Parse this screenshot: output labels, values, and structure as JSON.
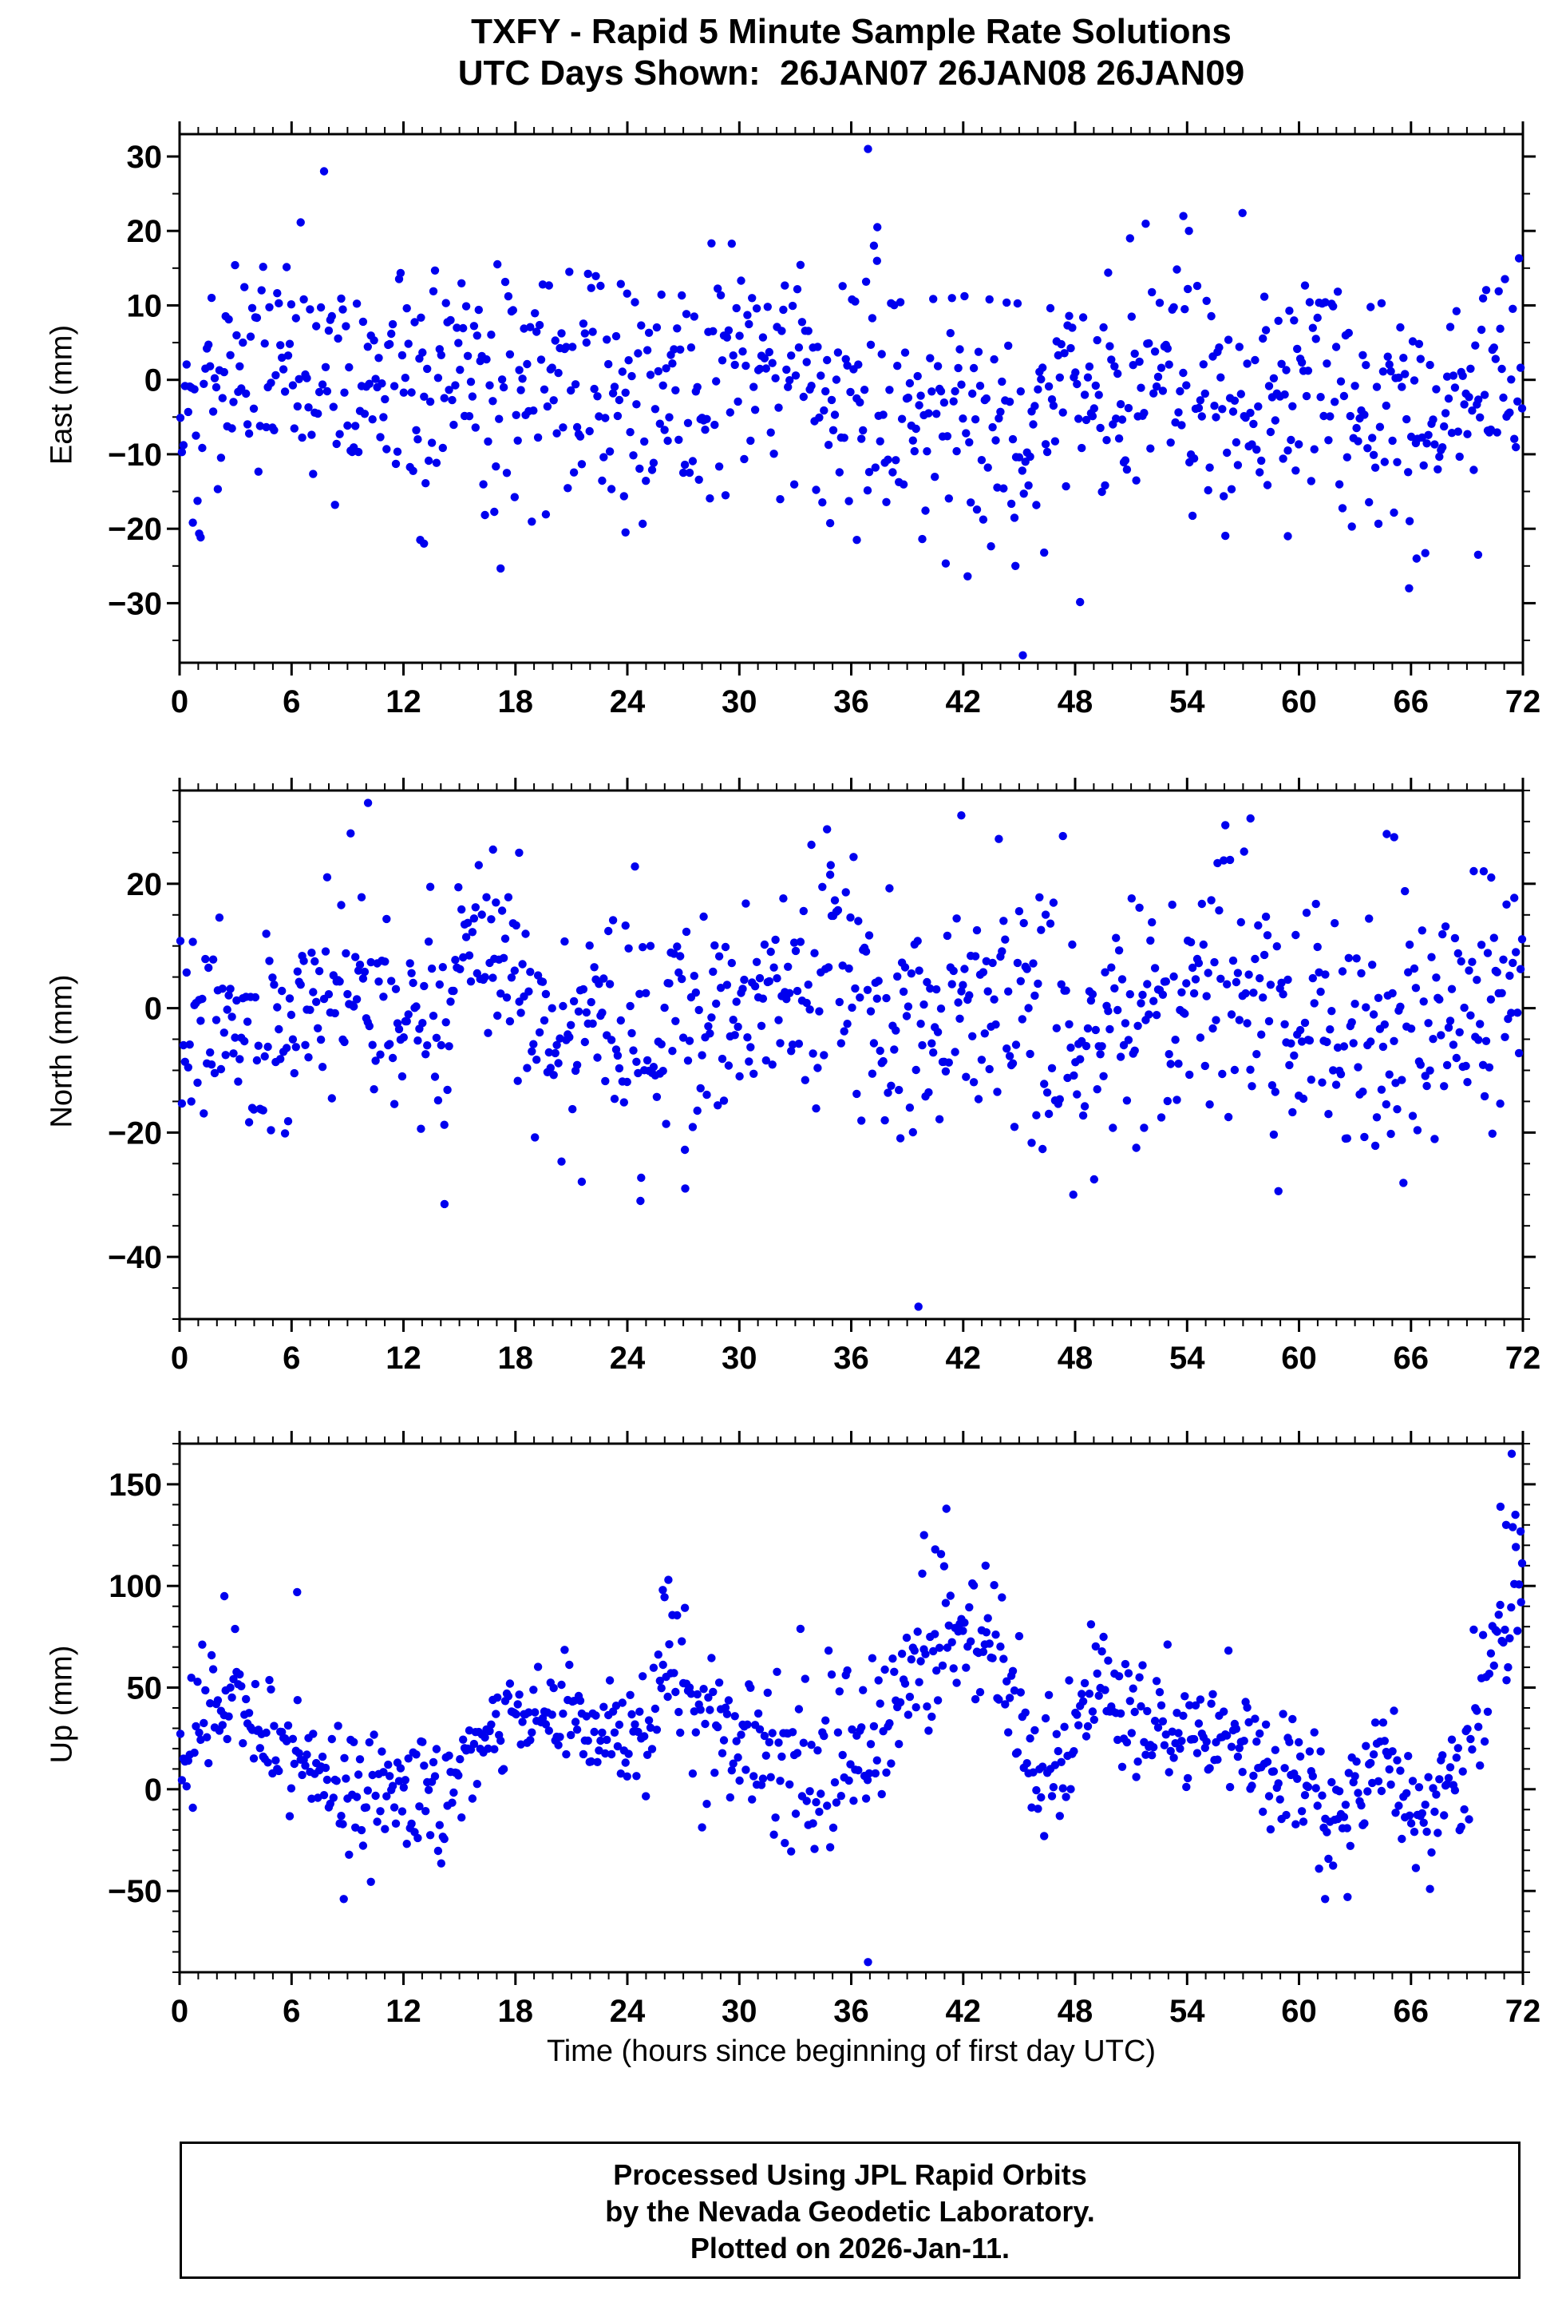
{
  "header": {
    "line1": "TXFY - Rapid 5 Minute Sample Rate Solutions",
    "line2": "UTC Days Shown:  26JAN07 26JAN08 26JAN09"
  },
  "xlabel": "Time (hours since beginning of first day UTC)",
  "point_color": "#0000ee",
  "footer": {
    "lines": [
      "Processed Using JPL Rapid Orbits",
      "by the Nevada Geodetic Laboratory.",
      "Plotted on 2026-Jan-11."
    ]
  },
  "chart_data": [
    {
      "type": "scatter",
      "panel": "east",
      "ylabel": "East (mm)",
      "x_range": [
        0,
        72
      ],
      "x_major": 6,
      "x_minor": 1,
      "x_ticks": [
        0,
        6,
        12,
        18,
        24,
        30,
        36,
        42,
        48,
        54,
        60,
        66,
        72
      ],
      "y_range": [
        -38,
        33
      ],
      "y_ticks": [
        30,
        20,
        10,
        0,
        -10,
        -20,
        -30
      ],
      "y_minor": 5,
      "n_points": 860,
      "seed": 101,
      "trend_keyframes": [
        [
          0,
          -6
        ],
        [
          1,
          -7
        ],
        [
          2,
          -1
        ],
        [
          3,
          2
        ],
        [
          4,
          1
        ],
        [
          6,
          3
        ],
        [
          8,
          2
        ],
        [
          10,
          3
        ],
        [
          12,
          -1
        ],
        [
          14,
          1
        ],
        [
          16,
          -2
        ],
        [
          18,
          -2
        ],
        [
          20,
          1
        ],
        [
          22,
          0
        ],
        [
          24,
          0
        ],
        [
          26,
          1
        ],
        [
          28,
          0
        ],
        [
          30,
          2
        ],
        [
          32,
          2
        ],
        [
          34,
          1
        ],
        [
          36,
          -1
        ],
        [
          38,
          0
        ],
        [
          40,
          -2
        ],
        [
          42,
          -3
        ],
        [
          44,
          -4
        ],
        [
          46,
          -5
        ],
        [
          48,
          -4
        ],
        [
          50,
          -2
        ],
        [
          52,
          1
        ],
        [
          54,
          2
        ],
        [
          56,
          -2
        ],
        [
          58,
          -1
        ],
        [
          60,
          -1
        ],
        [
          62,
          0
        ],
        [
          64,
          -3
        ],
        [
          66,
          -5
        ],
        [
          68,
          -3
        ],
        [
          70,
          0
        ],
        [
          72,
          0
        ]
      ],
      "sigma_keyframes": [
        [
          0,
          5
        ],
        [
          2,
          8
        ],
        [
          24,
          8
        ],
        [
          36,
          9
        ],
        [
          60,
          8
        ],
        [
          72,
          8
        ]
      ],
      "outlier_points": [
        [
          36.3,
          -21.5
        ],
        [
          36.9,
          31
        ],
        [
          37.4,
          20.5
        ],
        [
          45.2,
          -37
        ],
        [
          44.8,
          -25
        ],
        [
          53.8,
          22
        ],
        [
          54.1,
          20
        ],
        [
          65.9,
          -28
        ],
        [
          66.3,
          -24
        ],
        [
          69.6,
          -23.5
        ],
        [
          12.9,
          -21.5
        ],
        [
          13.1,
          -22
        ],
        [
          23.9,
          -20.5
        ],
        [
          59.4,
          -21
        ]
      ]
    },
    {
      "type": "scatter",
      "panel": "north",
      "ylabel": "North (mm)",
      "x_range": [
        0,
        72
      ],
      "x_major": 6,
      "x_minor": 1,
      "x_ticks": [
        0,
        6,
        12,
        18,
        24,
        30,
        36,
        42,
        48,
        54,
        60,
        66,
        72
      ],
      "y_range": [
        -50,
        35
      ],
      "y_ticks": [
        20,
        0,
        -20,
        -40
      ],
      "y_minor": 5,
      "n_points": 860,
      "seed": 202,
      "trend_keyframes": [
        [
          0,
          -3
        ],
        [
          2,
          -4
        ],
        [
          4,
          -5
        ],
        [
          6,
          1
        ],
        [
          8,
          3
        ],
        [
          10,
          1
        ],
        [
          12,
          -1
        ],
        [
          14,
          -4
        ],
        [
          16,
          8
        ],
        [
          17,
          7
        ],
        [
          18,
          2
        ],
        [
          20,
          -2
        ],
        [
          22,
          -3
        ],
        [
          24,
          -4
        ],
        [
          26,
          -2
        ],
        [
          28,
          -4
        ],
        [
          30,
          -1
        ],
        [
          32,
          2
        ],
        [
          33,
          6
        ],
        [
          34,
          4
        ],
        [
          35,
          8
        ],
        [
          36,
          5
        ],
        [
          37,
          2
        ],
        [
          38,
          0
        ],
        [
          40,
          -2
        ],
        [
          42,
          3
        ],
        [
          44,
          1
        ],
        [
          46,
          -2
        ],
        [
          48,
          -3
        ],
        [
          50,
          -2
        ],
        [
          52,
          -1
        ],
        [
          54,
          0
        ],
        [
          56,
          3
        ],
        [
          58,
          1
        ],
        [
          60,
          -2
        ],
        [
          62,
          -4
        ],
        [
          64,
          -3
        ],
        [
          66,
          -4
        ],
        [
          68,
          -2
        ],
        [
          70,
          4
        ],
        [
          72,
          3
        ]
      ],
      "sigma_keyframes": [
        [
          0,
          7
        ],
        [
          6,
          9
        ],
        [
          18,
          8
        ],
        [
          30,
          9
        ],
        [
          36,
          10
        ],
        [
          48,
          9
        ],
        [
          60,
          10
        ],
        [
          72,
          9
        ]
      ],
      "outlier_points": [
        [
          10.1,
          33
        ],
        [
          39.6,
          -48
        ],
        [
          14.2,
          -31.5
        ],
        [
          24.7,
          -31
        ],
        [
          27.1,
          -29
        ],
        [
          41.9,
          31
        ],
        [
          57.4,
          30.5
        ],
        [
          64.7,
          28
        ],
        [
          65.1,
          27.5
        ],
        [
          69.9,
          22
        ],
        [
          70.3,
          21
        ],
        [
          16.8,
          25.5
        ],
        [
          18.2,
          25
        ],
        [
          47.9,
          -30
        ],
        [
          34.9,
          23
        ]
      ]
    },
    {
      "type": "scatter",
      "panel": "up",
      "ylabel": "Up (mm)",
      "x_range": [
        0,
        72
      ],
      "x_major": 6,
      "x_minor": 1,
      "x_ticks": [
        0,
        6,
        12,
        18,
        24,
        30,
        36,
        42,
        48,
        54,
        60,
        66,
        72
      ],
      "y_range": [
        -90,
        170
      ],
      "y_ticks": [
        150,
        100,
        50,
        0,
        -50
      ],
      "y_minor": 10,
      "n_points": 860,
      "seed": 303,
      "trend_keyframes": [
        [
          0,
          25
        ],
        [
          1,
          35
        ],
        [
          2,
          40
        ],
        [
          3,
          45
        ],
        [
          4,
          30
        ],
        [
          5,
          25
        ],
        [
          6,
          20
        ],
        [
          7,
          15
        ],
        [
          8,
          5
        ],
        [
          9,
          0
        ],
        [
          10,
          0
        ],
        [
          11,
          5
        ],
        [
          12,
          0
        ],
        [
          13,
          -5
        ],
        [
          14,
          -5
        ],
        [
          15,
          10
        ],
        [
          16,
          25
        ],
        [
          17,
          30
        ],
        [
          18,
          35
        ],
        [
          19,
          30
        ],
        [
          20,
          35
        ],
        [
          21,
          38
        ],
        [
          22,
          35
        ],
        [
          23,
          32
        ],
        [
          24,
          30
        ],
        [
          25,
          35
        ],
        [
          26,
          55
        ],
        [
          27,
          55
        ],
        [
          28,
          40
        ],
        [
          29,
          30
        ],
        [
          30,
          25
        ],
        [
          31,
          12
        ],
        [
          32,
          15
        ],
        [
          33,
          18
        ],
        [
          34,
          5
        ],
        [
          35,
          10
        ],
        [
          36,
          15
        ],
        [
          37,
          20
        ],
        [
          38,
          45
        ],
        [
          39,
          60
        ],
        [
          40,
          70
        ],
        [
          41,
          78
        ],
        [
          42,
          62
        ],
        [
          43,
          68
        ],
        [
          44,
          62
        ],
        [
          45,
          45
        ],
        [
          46,
          5
        ],
        [
          47,
          12
        ],
        [
          48,
          30
        ],
        [
          49,
          55
        ],
        [
          50,
          42
        ],
        [
          51,
          30
        ],
        [
          52,
          25
        ],
        [
          53,
          32
        ],
        [
          54,
          28
        ],
        [
          55,
          25
        ],
        [
          56,
          30
        ],
        [
          57,
          22
        ],
        [
          58,
          12
        ],
        [
          59,
          8
        ],
        [
          60,
          5
        ],
        [
          61,
          -8
        ],
        [
          62,
          -15
        ],
        [
          63,
          -8
        ],
        [
          64,
          18
        ],
        [
          65,
          8
        ],
        [
          66,
          -18
        ],
        [
          67,
          -12
        ],
        [
          68,
          -2
        ],
        [
          69,
          8
        ],
        [
          70,
          55
        ],
        [
          71,
          90
        ],
        [
          72,
          115
        ]
      ],
      "sigma_keyframes": [
        [
          0,
          15
        ],
        [
          12,
          14
        ],
        [
          18,
          12
        ],
        [
          24,
          15
        ],
        [
          30,
          18
        ],
        [
          36,
          20
        ],
        [
          42,
          18
        ],
        [
          48,
          16
        ],
        [
          54,
          14
        ],
        [
          60,
          12
        ],
        [
          66,
          14
        ],
        [
          70,
          18
        ],
        [
          72,
          20
        ]
      ],
      "outlier_points": [
        [
          71.4,
          165
        ],
        [
          41.1,
          138
        ],
        [
          70.8,
          139
        ],
        [
          71.1,
          130
        ],
        [
          71.6,
          135
        ],
        [
          36.9,
          -85
        ],
        [
          8.8,
          -54
        ],
        [
          61.4,
          -54
        ],
        [
          62.6,
          -53
        ],
        [
          26.2,
          103
        ],
        [
          25.9,
          98
        ],
        [
          2.4,
          95
        ],
        [
          6.3,
          97
        ],
        [
          39.9,
          125
        ],
        [
          40.5,
          118
        ],
        [
          43.2,
          110
        ],
        [
          71.9,
          92
        ]
      ]
    }
  ]
}
